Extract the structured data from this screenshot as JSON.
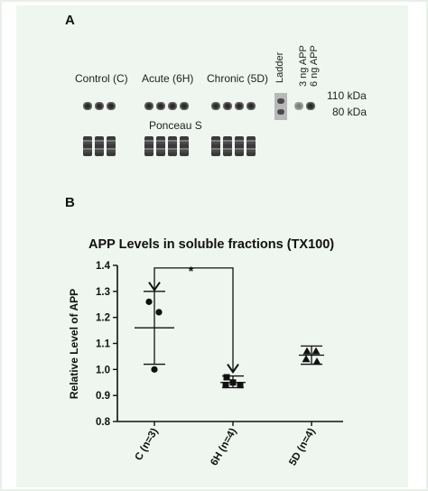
{
  "figure": {
    "panel_a_label": "A",
    "panel_b_label": "B",
    "blot": {
      "group_labels": [
        "Control (C)",
        "Acute (6H)",
        "Chronic (5D)"
      ],
      "ladder_label": "Ladder",
      "std_labels": [
        "3 ng APP",
        "6 ng APP"
      ],
      "mw_labels": [
        "110 kDa",
        "80 kDa"
      ],
      "ponceau_label": "Ponceau S"
    }
  },
  "chart_data": {
    "type": "scatter",
    "title": "APP Levels in soluble fractions (TX100)",
    "ylabel": "Relative Level of APP",
    "xlabel": "",
    "categories": [
      "C (n=3)",
      "6H (n=4)",
      "5D (n=4)"
    ],
    "ylim": [
      0.8,
      1.4
    ],
    "yticks": [
      "0.8",
      "0.9",
      "1.0",
      "1.1",
      "1.2",
      "1.3",
      "1.4"
    ],
    "grid": false,
    "groups": [
      {
        "category": "C (n=3)",
        "marker": "circle",
        "points": [
          1.26,
          1.22,
          1.0
        ],
        "mean": 1.16,
        "sd_low": 1.02,
        "sd_high": 1.3
      },
      {
        "category": "6H (n=4)",
        "marker": "square",
        "points": [
          0.97,
          0.95,
          0.94,
          0.94
        ],
        "mean": 0.95,
        "sd_low": 0.93,
        "sd_high": 0.975
      },
      {
        "category": "5D (n=4)",
        "marker": "triangle",
        "points": [
          1.07,
          1.07,
          1.04,
          1.03
        ],
        "mean": 1.055,
        "sd_low": 1.02,
        "sd_high": 1.09
      }
    ],
    "annotation": {
      "text": "*",
      "from": "C (n=3)",
      "to": "6H (n=4)"
    }
  }
}
